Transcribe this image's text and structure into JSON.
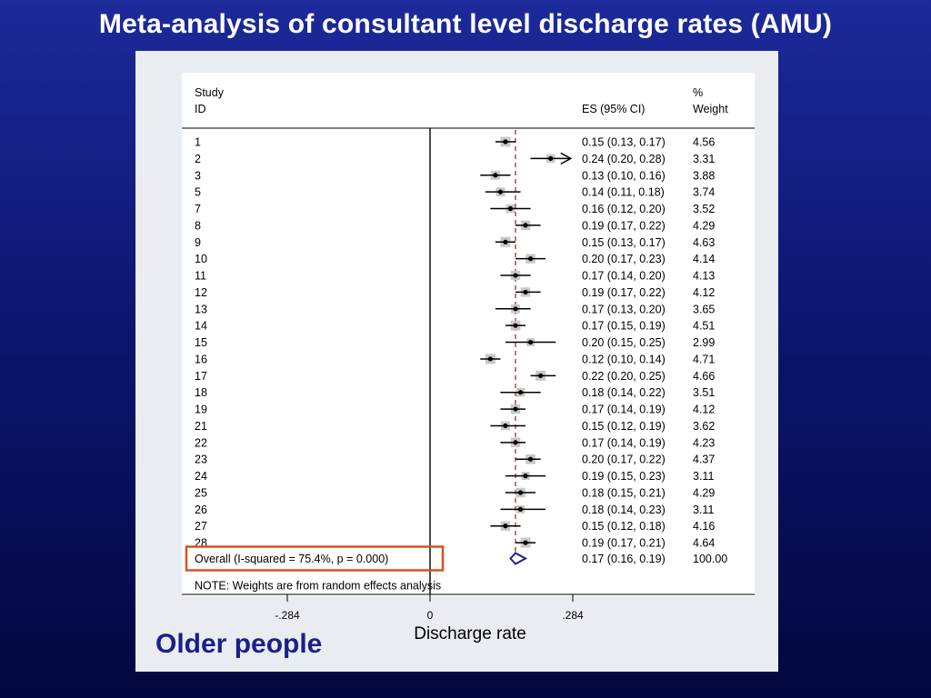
{
  "slide": {
    "title": "Meta-analysis of consultant level discharge rates (AMU)",
    "subtitle": "Older people"
  },
  "colors": {
    "background_top": "#1c2a9a",
    "background_bottom": "#03073f",
    "summary_diamond": "#1b1f8a",
    "overall_line": "#a11a1a",
    "highlight_box": "#d9501e",
    "weight_box": "#c8c8c8",
    "subtitle": "#1b1f8a"
  },
  "chart_data": {
    "type": "forest",
    "header": {
      "study_line1": "Study",
      "study_line2": "ID",
      "es_label": "ES (95% CI)",
      "weight_line1": "%",
      "weight_line2": "Weight"
    },
    "xlabel": "Discharge rate",
    "xticks": [
      {
        "value": -0.284,
        "label": "-.284"
      },
      {
        "value": 0,
        "label": "0"
      },
      {
        "value": 0.284,
        "label": ".284"
      }
    ],
    "xlim": [
      -0.284,
      0.284
    ],
    "null_value": 0,
    "overall_line_value": 0.17,
    "studies": [
      {
        "id": "1",
        "es": 0.15,
        "lo": 0.13,
        "hi": 0.17,
        "ci_text": "0.15 (0.13, 0.17)",
        "weight": 4.56,
        "weight_text": "4.56",
        "arrow": false
      },
      {
        "id": "2",
        "es": 0.24,
        "lo": 0.2,
        "hi": 0.28,
        "ci_text": "0.24 (0.20, 0.28)",
        "weight": 3.31,
        "weight_text": "3.31",
        "arrow": true
      },
      {
        "id": "3",
        "es": 0.13,
        "lo": 0.1,
        "hi": 0.16,
        "ci_text": "0.13 (0.10, 0.16)",
        "weight": 3.88,
        "weight_text": "3.88",
        "arrow": false
      },
      {
        "id": "5",
        "es": 0.14,
        "lo": 0.11,
        "hi": 0.18,
        "ci_text": "0.14 (0.11, 0.18)",
        "weight": 3.74,
        "weight_text": "3.74",
        "arrow": false
      },
      {
        "id": "7",
        "es": 0.16,
        "lo": 0.12,
        "hi": 0.2,
        "ci_text": "0.16 (0.12, 0.20)",
        "weight": 3.52,
        "weight_text": "3.52",
        "arrow": false
      },
      {
        "id": "8",
        "es": 0.19,
        "lo": 0.17,
        "hi": 0.22,
        "ci_text": "0.19 (0.17, 0.22)",
        "weight": 4.29,
        "weight_text": "4.29",
        "arrow": false
      },
      {
        "id": "9",
        "es": 0.15,
        "lo": 0.13,
        "hi": 0.17,
        "ci_text": "0.15 (0.13, 0.17)",
        "weight": 4.63,
        "weight_text": "4.63",
        "arrow": false
      },
      {
        "id": "10",
        "es": 0.2,
        "lo": 0.17,
        "hi": 0.23,
        "ci_text": "0.20 (0.17, 0.23)",
        "weight": 4.14,
        "weight_text": "4.14",
        "arrow": false
      },
      {
        "id": "11",
        "es": 0.17,
        "lo": 0.14,
        "hi": 0.2,
        "ci_text": "0.17 (0.14, 0.20)",
        "weight": 4.13,
        "weight_text": "4.13",
        "arrow": false
      },
      {
        "id": "12",
        "es": 0.19,
        "lo": 0.17,
        "hi": 0.22,
        "ci_text": "0.19 (0.17, 0.22)",
        "weight": 4.12,
        "weight_text": "4.12",
        "arrow": false
      },
      {
        "id": "13",
        "es": 0.17,
        "lo": 0.13,
        "hi": 0.2,
        "ci_text": "0.17 (0.13, 0.20)",
        "weight": 3.65,
        "weight_text": "3.65",
        "arrow": false
      },
      {
        "id": "14",
        "es": 0.17,
        "lo": 0.15,
        "hi": 0.19,
        "ci_text": "0.17 (0.15, 0.19)",
        "weight": 4.51,
        "weight_text": "4.51",
        "arrow": false
      },
      {
        "id": "15",
        "es": 0.2,
        "lo": 0.15,
        "hi": 0.25,
        "ci_text": "0.20 (0.15, 0.25)",
        "weight": 2.99,
        "weight_text": "2.99",
        "arrow": false
      },
      {
        "id": "16",
        "es": 0.12,
        "lo": 0.1,
        "hi": 0.14,
        "ci_text": "0.12 (0.10, 0.14)",
        "weight": 4.71,
        "weight_text": "4.71",
        "arrow": false
      },
      {
        "id": "17",
        "es": 0.22,
        "lo": 0.2,
        "hi": 0.25,
        "ci_text": "0.22 (0.20, 0.25)",
        "weight": 4.66,
        "weight_text": "4.66",
        "arrow": false
      },
      {
        "id": "18",
        "es": 0.18,
        "lo": 0.14,
        "hi": 0.22,
        "ci_text": "0.18 (0.14, 0.22)",
        "weight": 3.51,
        "weight_text": "3.51",
        "arrow": false
      },
      {
        "id": "19",
        "es": 0.17,
        "lo": 0.14,
        "hi": 0.19,
        "ci_text": "0.17 (0.14, 0.19)",
        "weight": 4.12,
        "weight_text": "4.12",
        "arrow": false
      },
      {
        "id": "21",
        "es": 0.15,
        "lo": 0.12,
        "hi": 0.19,
        "ci_text": "0.15 (0.12, 0.19)",
        "weight": 3.62,
        "weight_text": "3.62",
        "arrow": false
      },
      {
        "id": "22",
        "es": 0.17,
        "lo": 0.14,
        "hi": 0.19,
        "ci_text": "0.17 (0.14, 0.19)",
        "weight": 4.23,
        "weight_text": "4.23",
        "arrow": false
      },
      {
        "id": "23",
        "es": 0.2,
        "lo": 0.17,
        "hi": 0.22,
        "ci_text": "0.20 (0.17, 0.22)",
        "weight": 4.37,
        "weight_text": "4.37",
        "arrow": false
      },
      {
        "id": "24",
        "es": 0.19,
        "lo": 0.15,
        "hi": 0.23,
        "ci_text": "0.19 (0.15, 0.23)",
        "weight": 3.11,
        "weight_text": "3.11",
        "arrow": false
      },
      {
        "id": "25",
        "es": 0.18,
        "lo": 0.15,
        "hi": 0.21,
        "ci_text": "0.18 (0.15, 0.21)",
        "weight": 4.29,
        "weight_text": "4.29",
        "arrow": false
      },
      {
        "id": "26",
        "es": 0.18,
        "lo": 0.14,
        "hi": 0.23,
        "ci_text": "0.18 (0.14, 0.23)",
        "weight": 3.11,
        "weight_text": "3.11",
        "arrow": false
      },
      {
        "id": "27",
        "es": 0.15,
        "lo": 0.12,
        "hi": 0.18,
        "ci_text": "0.15 (0.12, 0.18)",
        "weight": 4.16,
        "weight_text": "4.16",
        "arrow": false
      },
      {
        "id": "28",
        "es": 0.19,
        "lo": 0.17,
        "hi": 0.21,
        "ci_text": "0.19 (0.17, 0.21)",
        "weight": 4.64,
        "weight_text": "4.64",
        "arrow": false
      }
    ],
    "overall": {
      "label": "Overall  (I-squared = 75.4%, p = 0.000)",
      "es": 0.17,
      "lo": 0.16,
      "hi": 0.19,
      "ci_text": "0.17 (0.16, 0.19)",
      "weight_text": "100.00"
    },
    "note": "NOTE: Weights are from random effects analysis"
  }
}
